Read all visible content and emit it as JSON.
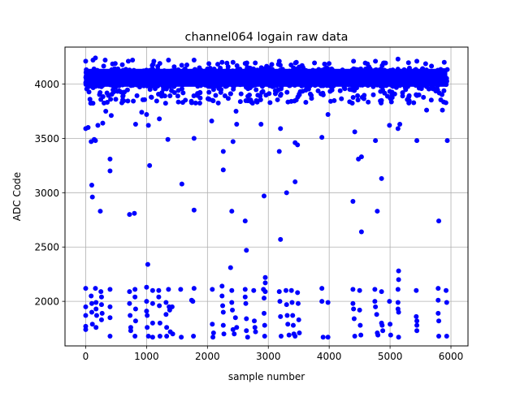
{
  "chart_data": {
    "type": "scatter",
    "title": "channel064 logain raw data",
    "xlabel": "sample number",
    "ylabel": "ADC Code",
    "xlim": [
      -340,
      6280
    ],
    "ylim": [
      1590,
      4340
    ],
    "x_ticks": [
      0,
      1000,
      2000,
      3000,
      4000,
      5000,
      6000
    ],
    "y_ticks": [
      2000,
      2500,
      3000,
      3500,
      4000
    ],
    "grid": true,
    "marker_color": "#0000ff",
    "band": {
      "x_range": [
        0,
        5940
      ],
      "core_y_range": [
        3975,
        4140
      ],
      "spread_y_range": [
        3820,
        4235
      ]
    },
    "points": [
      {
        "x": 0,
        "y": 3590
      },
      {
        "x": 40,
        "y": 3600
      },
      {
        "x": 70,
        "y": 3860
      },
      {
        "x": 90,
        "y": 3470
      },
      {
        "x": 100,
        "y": 3070
      },
      {
        "x": 110,
        "y": 2960
      },
      {
        "x": 140,
        "y": 3490
      },
      {
        "x": 160,
        "y": 3480
      },
      {
        "x": 200,
        "y": 3620
      },
      {
        "x": 240,
        "y": 2830
      },
      {
        "x": 280,
        "y": 3640
      },
      {
        "x": 330,
        "y": 3750
      },
      {
        "x": 400,
        "y": 3310
      },
      {
        "x": 400,
        "y": 3200
      },
      {
        "x": 420,
        "y": 3710
      },
      {
        "x": 720,
        "y": 2800
      },
      {
        "x": 800,
        "y": 2810
      },
      {
        "x": 820,
        "y": 3630
      },
      {
        "x": 920,
        "y": 3740
      },
      {
        "x": 1000,
        "y": 3720
      },
      {
        "x": 1030,
        "y": 3620
      },
      {
        "x": 1050,
        "y": 3250
      },
      {
        "x": 1210,
        "y": 3680
      },
      {
        "x": 1350,
        "y": 3490
      },
      {
        "x": 1580,
        "y": 3080
      },
      {
        "x": 1780,
        "y": 3500
      },
      {
        "x": 1780,
        "y": 2840
      },
      {
        "x": 2070,
        "y": 3660
      },
      {
        "x": 2260,
        "y": 3380
      },
      {
        "x": 2260,
        "y": 3210
      },
      {
        "x": 2400,
        "y": 2830
      },
      {
        "x": 2380,
        "y": 2310
      },
      {
        "x": 2420,
        "y": 3470
      },
      {
        "x": 2470,
        "y": 3750
      },
      {
        "x": 2480,
        "y": 3630
      },
      {
        "x": 2620,
        "y": 2740
      },
      {
        "x": 2640,
        "y": 2470
      },
      {
        "x": 2880,
        "y": 3630
      },
      {
        "x": 2930,
        "y": 2970
      },
      {
        "x": 3200,
        "y": 2570
      },
      {
        "x": 3180,
        "y": 3380
      },
      {
        "x": 3200,
        "y": 3590
      },
      {
        "x": 3300,
        "y": 3000
      },
      {
        "x": 3440,
        "y": 3460
      },
      {
        "x": 3480,
        "y": 3440
      },
      {
        "x": 3440,
        "y": 3100
      },
      {
        "x": 3880,
        "y": 3510
      },
      {
        "x": 3980,
        "y": 3720
      },
      {
        "x": 4390,
        "y": 2920
      },
      {
        "x": 4420,
        "y": 3560
      },
      {
        "x": 4480,
        "y": 3310
      },
      {
        "x": 4530,
        "y": 3330
      },
      {
        "x": 4530,
        "y": 2640
      },
      {
        "x": 4760,
        "y": 3480
      },
      {
        "x": 4790,
        "y": 2830
      },
      {
        "x": 4860,
        "y": 3130
      },
      {
        "x": 4990,
        "y": 3620
      },
      {
        "x": 5130,
        "y": 3590
      },
      {
        "x": 5160,
        "y": 3630
      },
      {
        "x": 5440,
        "y": 3480
      },
      {
        "x": 5600,
        "y": 3760
      },
      {
        "x": 5800,
        "y": 2740
      },
      {
        "x": 5860,
        "y": 3760
      },
      {
        "x": 5940,
        "y": 3480
      },
      {
        "x": 1020,
        "y": 2340
      },
      {
        "x": 5140,
        "y": 2280
      },
      {
        "x": 5140,
        "y": 2200
      },
      {
        "x": 2950,
        "y": 2220
      },
      {
        "x": 2950,
        "y": 2170
      },
      {
        "x": 2950,
        "y": 2090
      },
      {
        "x": 0,
        "y": 2120
      },
      {
        "x": 0,
        "y": 1950
      },
      {
        "x": 0,
        "y": 1870
      },
      {
        "x": 0,
        "y": 1770
      },
      {
        "x": 0,
        "y": 1740
      },
      {
        "x": 90,
        "y": 2050
      },
      {
        "x": 100,
        "y": 1980
      },
      {
        "x": 100,
        "y": 1900
      },
      {
        "x": 110,
        "y": 1790
      },
      {
        "x": 160,
        "y": 2120
      },
      {
        "x": 170,
        "y": 1990
      },
      {
        "x": 170,
        "y": 1930
      },
      {
        "x": 180,
        "y": 1870
      },
      {
        "x": 170,
        "y": 1760
      },
      {
        "x": 250,
        "y": 2090
      },
      {
        "x": 260,
        "y": 2040
      },
      {
        "x": 260,
        "y": 1970
      },
      {
        "x": 270,
        "y": 1890
      },
      {
        "x": 260,
        "y": 1830
      },
      {
        "x": 400,
        "y": 2110
      },
      {
        "x": 400,
        "y": 1950
      },
      {
        "x": 400,
        "y": 1850
      },
      {
        "x": 400,
        "y": 1680
      },
      {
        "x": 720,
        "y": 2090
      },
      {
        "x": 720,
        "y": 1980
      },
      {
        "x": 730,
        "y": 1870
      },
      {
        "x": 740,
        "y": 1760
      },
      {
        "x": 740,
        "y": 1730
      },
      {
        "x": 810,
        "y": 2110
      },
      {
        "x": 810,
        "y": 2040
      },
      {
        "x": 820,
        "y": 1930
      },
      {
        "x": 820,
        "y": 1820
      },
      {
        "x": 810,
        "y": 1680
      },
      {
        "x": 1000,
        "y": 2130
      },
      {
        "x": 1000,
        "y": 2000
      },
      {
        "x": 1000,
        "y": 1910
      },
      {
        "x": 1010,
        "y": 1870
      },
      {
        "x": 1010,
        "y": 1760
      },
      {
        "x": 1030,
        "y": 1680
      },
      {
        "x": 1100,
        "y": 2100
      },
      {
        "x": 1100,
        "y": 1980
      },
      {
        "x": 1100,
        "y": 1800
      },
      {
        "x": 1100,
        "y": 1670
      },
      {
        "x": 1200,
        "y": 2100
      },
      {
        "x": 1200,
        "y": 2040
      },
      {
        "x": 1210,
        "y": 1960
      },
      {
        "x": 1220,
        "y": 1800
      },
      {
        "x": 1220,
        "y": 1680
      },
      {
        "x": 1320,
        "y": 1990
      },
      {
        "x": 1320,
        "y": 1880
      },
      {
        "x": 1330,
        "y": 1760
      },
      {
        "x": 1330,
        "y": 1680
      },
      {
        "x": 1360,
        "y": 2110
      },
      {
        "x": 1370,
        "y": 1950
      },
      {
        "x": 1380,
        "y": 1920
      },
      {
        "x": 1390,
        "y": 1720
      },
      {
        "x": 1420,
        "y": 1950
      },
      {
        "x": 1430,
        "y": 1700
      },
      {
        "x": 1560,
        "y": 2110
      },
      {
        "x": 1570,
        "y": 1670
      },
      {
        "x": 1740,
        "y": 2010
      },
      {
        "x": 1760,
        "y": 2000
      },
      {
        "x": 1780,
        "y": 2120
      },
      {
        "x": 1770,
        "y": 1680
      },
      {
        "x": 2080,
        "y": 2110
      },
      {
        "x": 2080,
        "y": 1790
      },
      {
        "x": 2100,
        "y": 1710
      },
      {
        "x": 2090,
        "y": 1670
      },
      {
        "x": 2240,
        "y": 2140
      },
      {
        "x": 2240,
        "y": 2050
      },
      {
        "x": 2250,
        "y": 1960
      },
      {
        "x": 2260,
        "y": 1900
      },
      {
        "x": 2260,
        "y": 1780
      },
      {
        "x": 2270,
        "y": 1700
      },
      {
        "x": 2400,
        "y": 2100
      },
      {
        "x": 2400,
        "y": 1990
      },
      {
        "x": 2410,
        "y": 1920
      },
      {
        "x": 2420,
        "y": 1740
      },
      {
        "x": 2440,
        "y": 1700
      },
      {
        "x": 2460,
        "y": 1850
      },
      {
        "x": 2480,
        "y": 1760
      },
      {
        "x": 2620,
        "y": 2110
      },
      {
        "x": 2620,
        "y": 2040
      },
      {
        "x": 2630,
        "y": 1980
      },
      {
        "x": 2640,
        "y": 1840
      },
      {
        "x": 2640,
        "y": 1730
      },
      {
        "x": 2660,
        "y": 1670
      },
      {
        "x": 2760,
        "y": 2100
      },
      {
        "x": 2770,
        "y": 1820
      },
      {
        "x": 2780,
        "y": 1760
      },
      {
        "x": 2790,
        "y": 1720
      },
      {
        "x": 2920,
        "y": 2110
      },
      {
        "x": 2930,
        "y": 2030
      },
      {
        "x": 2930,
        "y": 1890
      },
      {
        "x": 2940,
        "y": 1780
      },
      {
        "x": 2940,
        "y": 1680
      },
      {
        "x": 3180,
        "y": 2090
      },
      {
        "x": 3190,
        "y": 2000
      },
      {
        "x": 3200,
        "y": 1860
      },
      {
        "x": 3210,
        "y": 1680
      },
      {
        "x": 3290,
        "y": 2100
      },
      {
        "x": 3300,
        "y": 1970
      },
      {
        "x": 3310,
        "y": 1870
      },
      {
        "x": 3320,
        "y": 1790
      },
      {
        "x": 3340,
        "y": 1690
      },
      {
        "x": 3380,
        "y": 2100
      },
      {
        "x": 3390,
        "y": 1990
      },
      {
        "x": 3400,
        "y": 1870
      },
      {
        "x": 3410,
        "y": 1780
      },
      {
        "x": 3420,
        "y": 1700
      },
      {
        "x": 3440,
        "y": 1680
      },
      {
        "x": 3480,
        "y": 2080
      },
      {
        "x": 3490,
        "y": 1980
      },
      {
        "x": 3500,
        "y": 1830
      },
      {
        "x": 3510,
        "y": 1710
      },
      {
        "x": 3880,
        "y": 2120
      },
      {
        "x": 3880,
        "y": 2000
      },
      {
        "x": 3900,
        "y": 1670
      },
      {
        "x": 3980,
        "y": 1990
      },
      {
        "x": 3980,
        "y": 1670
      },
      {
        "x": 4390,
        "y": 2110
      },
      {
        "x": 4390,
        "y": 1980
      },
      {
        "x": 4400,
        "y": 1930
      },
      {
        "x": 4410,
        "y": 1840
      },
      {
        "x": 4420,
        "y": 1680
      },
      {
        "x": 4500,
        "y": 2100
      },
      {
        "x": 4500,
        "y": 1920
      },
      {
        "x": 4510,
        "y": 1780
      },
      {
        "x": 4520,
        "y": 1690
      },
      {
        "x": 4750,
        "y": 2110
      },
      {
        "x": 4750,
        "y": 2000
      },
      {
        "x": 4760,
        "y": 1950
      },
      {
        "x": 4780,
        "y": 1880
      },
      {
        "x": 4790,
        "y": 1710
      },
      {
        "x": 4800,
        "y": 1690
      },
      {
        "x": 4860,
        "y": 2090
      },
      {
        "x": 4860,
        "y": 1800
      },
      {
        "x": 4870,
        "y": 1780
      },
      {
        "x": 4880,
        "y": 1730
      },
      {
        "x": 4990,
        "y": 2000
      },
      {
        "x": 5000,
        "y": 1790
      },
      {
        "x": 5010,
        "y": 1690
      },
      {
        "x": 5130,
        "y": 2110
      },
      {
        "x": 5130,
        "y": 1990
      },
      {
        "x": 5130,
        "y": 1930
      },
      {
        "x": 5140,
        "y": 1900
      },
      {
        "x": 5140,
        "y": 1670
      },
      {
        "x": 5430,
        "y": 2100
      },
      {
        "x": 5430,
        "y": 1860
      },
      {
        "x": 5440,
        "y": 1820
      },
      {
        "x": 5440,
        "y": 1780
      },
      {
        "x": 5440,
        "y": 1730
      },
      {
        "x": 5790,
        "y": 2120
      },
      {
        "x": 5790,
        "y": 2010
      },
      {
        "x": 5790,
        "y": 1890
      },
      {
        "x": 5800,
        "y": 1820
      },
      {
        "x": 5800,
        "y": 1680
      },
      {
        "x": 5920,
        "y": 2100
      },
      {
        "x": 5930,
        "y": 1990
      },
      {
        "x": 5930,
        "y": 1680
      },
      {
        "x": 0,
        "y": 4210
      },
      {
        "x": 120,
        "y": 4220
      },
      {
        "x": 160,
        "y": 4240
      },
      {
        "x": 320,
        "y": 4220
      },
      {
        "x": 700,
        "y": 4210
      },
      {
        "x": 770,
        "y": 4220
      },
      {
        "x": 1120,
        "y": 4210
      },
      {
        "x": 1360,
        "y": 4220
      },
      {
        "x": 1780,
        "y": 4220
      },
      {
        "x": 2240,
        "y": 4200
      },
      {
        "x": 2420,
        "y": 4200
      },
      {
        "x": 2620,
        "y": 4190
      },
      {
        "x": 3180,
        "y": 4210
      },
      {
        "x": 3460,
        "y": 4200
      },
      {
        "x": 4400,
        "y": 4210
      },
      {
        "x": 4760,
        "y": 4210
      },
      {
        "x": 5130,
        "y": 4230
      },
      {
        "x": 5440,
        "y": 4210
      },
      {
        "x": 5890,
        "y": 4200
      }
    ]
  }
}
